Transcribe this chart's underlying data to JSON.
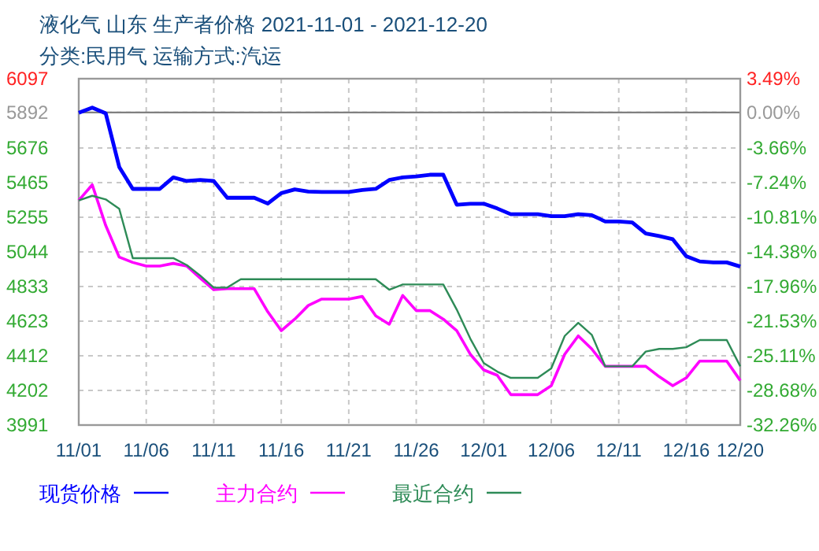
{
  "chart_data": {
    "type": "line",
    "title": "液化气 山东 生产者价格 2021-11-01 - 2021-12-20",
    "subtitle": "分类:民用气 运输方式:汽运",
    "x": [
      "2021-11-01",
      "2021-11-02",
      "2021-11-03",
      "2021-11-04",
      "2021-11-05",
      "2021-11-06",
      "2021-11-07",
      "2021-11-08",
      "2021-11-09",
      "2021-11-10",
      "2021-11-11",
      "2021-11-12",
      "2021-11-13",
      "2021-11-14",
      "2021-11-15",
      "2021-11-16",
      "2021-11-17",
      "2021-11-18",
      "2021-11-19",
      "2021-11-20",
      "2021-11-21",
      "2021-11-22",
      "2021-11-23",
      "2021-11-24",
      "2021-11-25",
      "2021-11-26",
      "2021-11-27",
      "2021-11-28",
      "2021-11-29",
      "2021-11-30",
      "2021-12-01",
      "2021-12-02",
      "2021-12-03",
      "2021-12-04",
      "2021-12-05",
      "2021-12-06",
      "2021-12-07",
      "2021-12-08",
      "2021-12-09",
      "2021-12-10",
      "2021-12-11",
      "2021-12-12",
      "2021-12-13",
      "2021-12-14",
      "2021-12-15",
      "2021-12-16",
      "2021-12-17",
      "2021-12-18",
      "2021-12-19",
      "2021-12-20"
    ],
    "series": [
      {
        "name": "现货价格",
        "color": "#0000ff",
        "values": [
          5890,
          5921,
          5886,
          5560,
          5427,
          5427,
          5427,
          5497,
          5475,
          5481,
          5475,
          5373,
          5373,
          5373,
          5338,
          5401,
          5424,
          5411,
          5408,
          5408,
          5408,
          5420,
          5427,
          5481,
          5497,
          5503,
          5513,
          5513,
          5331,
          5337,
          5337,
          5308,
          5273,
          5273,
          5273,
          5261,
          5261,
          5273,
          5267,
          5229,
          5229,
          5223,
          5156,
          5140,
          5121,
          5018,
          4986,
          4980,
          4980,
          4955
        ]
      },
      {
        "name": "主力合约",
        "color": "#ff00ff",
        "values": [
          5357,
          5452,
          5204,
          5012,
          4980,
          4958,
          4958,
          4974,
          4958,
          4884,
          4814,
          4820,
          4820,
          4820,
          4680,
          4565,
          4635,
          4718,
          4757,
          4757,
          4757,
          4773,
          4655,
          4604,
          4779,
          4687,
          4687,
          4635,
          4565,
          4422,
          4326,
          4294,
          4176,
          4176,
          4176,
          4230,
          4422,
          4533,
          4454,
          4348,
          4348,
          4348,
          4348,
          4285,
          4230,
          4278,
          4380,
          4380,
          4380,
          4262
        ]
      },
      {
        "name": "最近合约",
        "color": "#2e8b57",
        "values": [
          5357,
          5385,
          5363,
          5306,
          5006,
          5006,
          5006,
          5006,
          4964,
          4900,
          4827,
          4827,
          4878,
          4878,
          4878,
          4878,
          4878,
          4878,
          4878,
          4878,
          4878,
          4878,
          4878,
          4814,
          4846,
          4846,
          4846,
          4846,
          4693,
          4517,
          4368,
          4316,
          4278,
          4278,
          4278,
          4336,
          4533,
          4613,
          4540,
          4348,
          4348,
          4348,
          4438,
          4454,
          4454,
          4464,
          4508,
          4508,
          4508,
          4348
        ]
      }
    ],
    "xlim": [
      "2021-11-01",
      "2021-12-20"
    ],
    "xticks": [
      {
        "value": "2021-11-01",
        "label": "11/01"
      },
      {
        "value": "2021-11-06",
        "label": "11/06"
      },
      {
        "value": "2021-11-11",
        "label": "11/11"
      },
      {
        "value": "2021-11-16",
        "label": "11/16"
      },
      {
        "value": "2021-11-21",
        "label": "11/21"
      },
      {
        "value": "2021-11-26",
        "label": "11/26"
      },
      {
        "value": "2021-12-01",
        "label": "12/01"
      },
      {
        "value": "2021-12-06",
        "label": "12/06"
      },
      {
        "value": "2021-12-11",
        "label": "12/11"
      },
      {
        "value": "2021-12-16",
        "label": "12/16"
      },
      {
        "value": "2021-12-20",
        "label": "12/20"
      }
    ],
    "ylim": [
      3991,
      6097
    ],
    "yticks": [
      3991,
      4202,
      4412,
      4623,
      4833,
      5044,
      5255,
      5465,
      5676,
      5892,
      6097
    ],
    "y2lim": [
      -32.26,
      3.49
    ],
    "y2ticks": [
      {
        "value": -32.26,
        "label": "-32.26%"
      },
      {
        "value": -28.68,
        "label": "-28.68%"
      },
      {
        "value": -25.11,
        "label": "-25.11%"
      },
      {
        "value": -21.53,
        "label": "-21.53%"
      },
      {
        "value": -17.96,
        "label": "-17.96%"
      },
      {
        "value": -14.38,
        "label": "-14.38%"
      },
      {
        "value": -10.81,
        "label": "-10.81%"
      },
      {
        "value": -7.24,
        "label": "-7.24%"
      },
      {
        "value": -3.66,
        "label": "-3.66%"
      },
      {
        "value": 0,
        "label": "0.00%"
      },
      {
        "value": 3.49,
        "label": "3.49%"
      }
    ],
    "ref_lines": [
      {
        "axis": "y",
        "value": 5892,
        "color": "#808080"
      }
    ],
    "grid": true,
    "legend": "bottom",
    "marker": "none",
    "line_style": "solid"
  }
}
